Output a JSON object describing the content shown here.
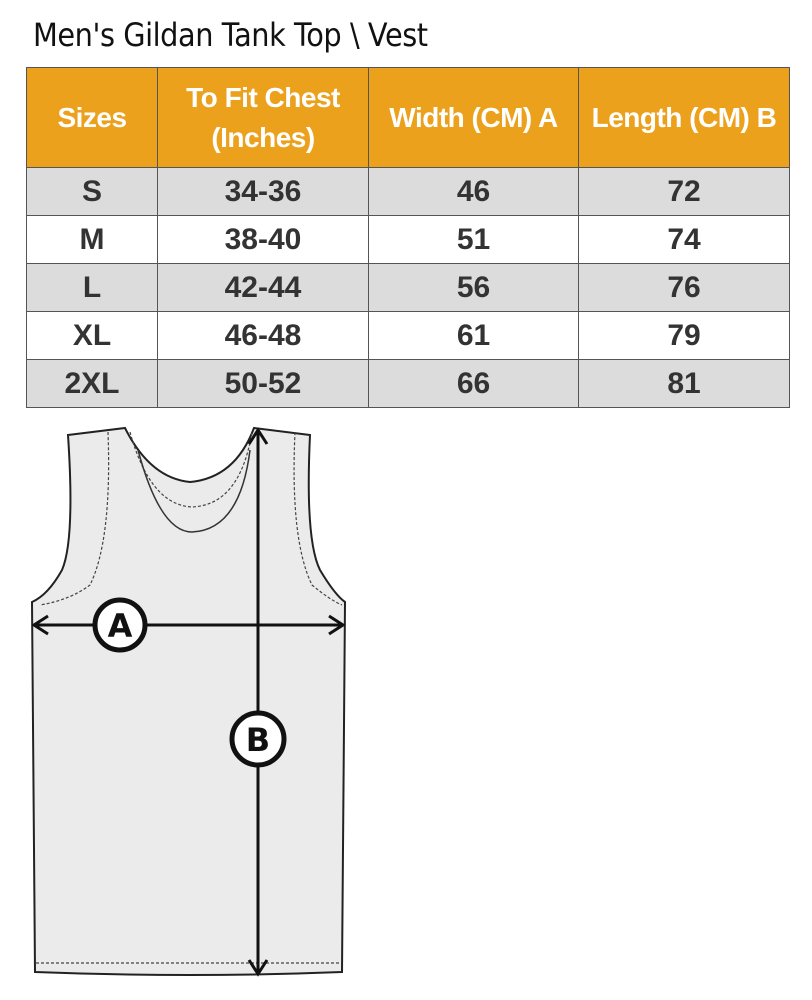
{
  "title": "Men's Gildan Tank Top \\ Vest",
  "table": {
    "headers": [
      "Sizes",
      "To Fit Chest (Inches)",
      "Width (CM) A",
      "Length  (CM) B"
    ],
    "rows": [
      [
        "S",
        "34-36",
        "46",
        "72"
      ],
      [
        "M",
        "38-40",
        "51",
        "74"
      ],
      [
        "L",
        "42-44",
        "56",
        "76"
      ],
      [
        "XL",
        "46-48",
        "61",
        "79"
      ],
      [
        "2XL",
        "50-52",
        "66",
        "81"
      ]
    ]
  },
  "diagram": {
    "label_a": "A",
    "label_b": "B"
  },
  "colors": {
    "header_bg": "#eca11d",
    "stripe": "#dcdcdc"
  }
}
